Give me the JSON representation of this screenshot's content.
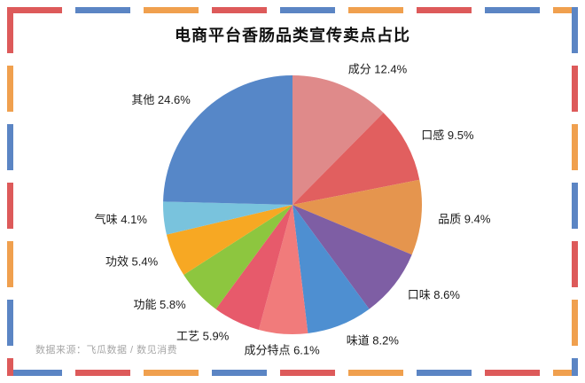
{
  "page": {
    "source_note": "数据来源：飞瓜数据 / 数见消费"
  },
  "frame_colors": {
    "red": "#DD5A5A",
    "blue": "#5B85C4",
    "orange": "#F0A04E"
  },
  "chart_data": {
    "type": "pie",
    "title": "电商平台香肠品类宣传卖点占比",
    "start_angle_deg": 0,
    "direction": "clockwise",
    "legend_position": "none",
    "label_format": "{label} {value}%",
    "slices": [
      {
        "label": "成分",
        "value": 12.4,
        "color": "#DF8A8A"
      },
      {
        "label": "口感",
        "value": 9.5,
        "color": "#E15F5F"
      },
      {
        "label": "品质",
        "value": 9.4,
        "color": "#E5954E"
      },
      {
        "label": "口味",
        "value": 8.6,
        "color": "#7E5EA4"
      },
      {
        "label": "味道",
        "value": 8.2,
        "color": "#4E8FD1"
      },
      {
        "label": "成分特点",
        "value": 6.1,
        "color": "#F17B7B"
      },
      {
        "label": "工艺",
        "value": 5.9,
        "color": "#E75A6B"
      },
      {
        "label": "功能",
        "value": 5.8,
        "color": "#8DC63F"
      },
      {
        "label": "功效",
        "value": 5.4,
        "color": "#F7A823"
      },
      {
        "label": "气味",
        "value": 4.1,
        "color": "#79C3DD"
      },
      {
        "label": "其他",
        "value": 24.6,
        "color": "#5687C8"
      }
    ]
  }
}
